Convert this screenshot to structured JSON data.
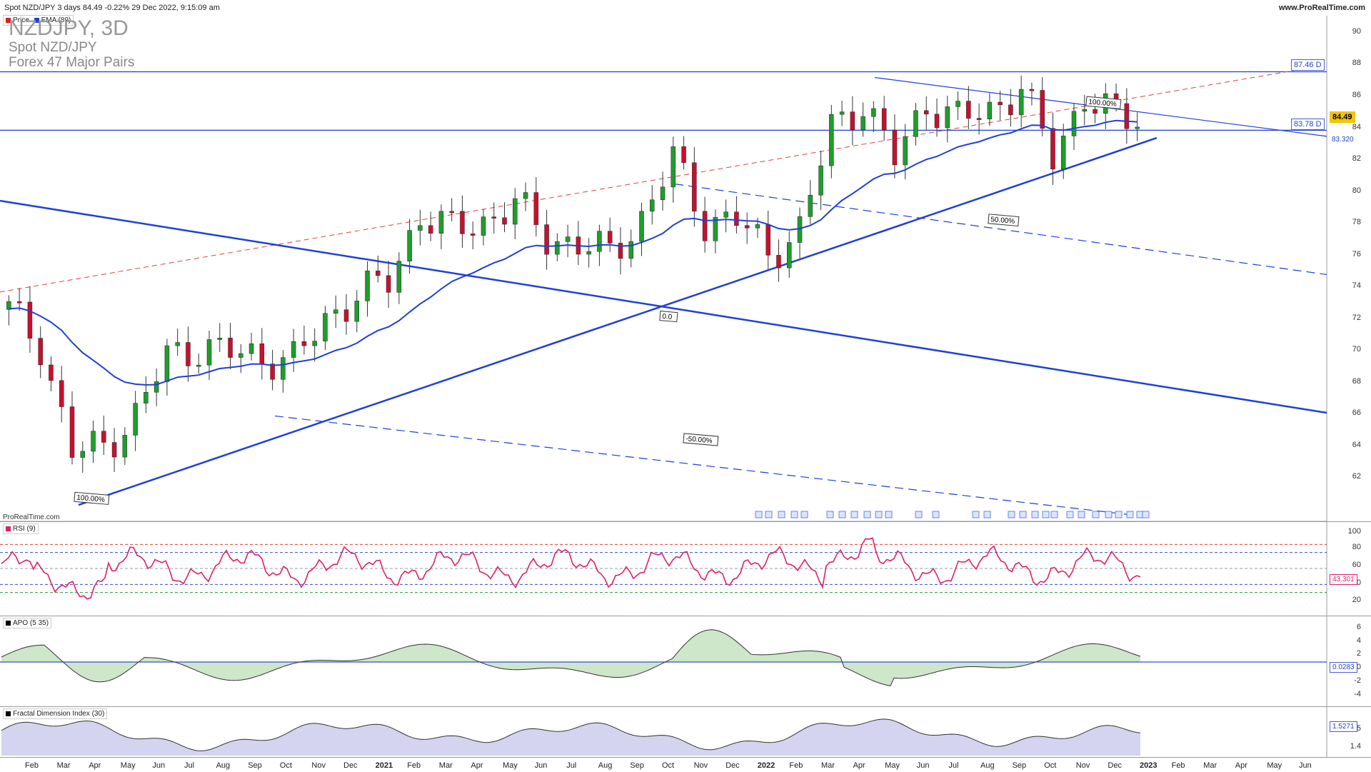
{
  "header": {
    "instrument_line": "Spot NZD/JPY 3 days 84.49 -0.22% 29 Dec 2022, 9:15:09 am",
    "site": "www.ProRealTime.com"
  },
  "legend_main": [
    {
      "label": "Price",
      "color": "#d62020"
    },
    {
      "label": "EMA (89)",
      "color": "#1f3fd8"
    }
  ],
  "titles": {
    "symbol": "NZDJPY, 3D",
    "name": "Spot NZD/JPY",
    "group": "Forex 47 Major Pairs"
  },
  "watermark": "ProRealTime.com",
  "price_axis": [
    "90",
    "88",
    "86",
    "84",
    "82",
    "80",
    "78",
    "76",
    "74",
    "72",
    "70",
    "68",
    "66",
    "64",
    "62"
  ],
  "price_tags": {
    "resistance": "87.46 D",
    "support": "83.78 D",
    "last": "84.49",
    "ema": "83.320"
  },
  "annotations": {
    "fib_100": "100.00%",
    "fib_50": "50.00%",
    "fib_0": "0.0",
    "fib_m50": "-50.00%",
    "fib_low": "100.00%"
  },
  "rsi": {
    "label": "RSI (9)",
    "axis": [
      "100",
      "80",
      "60",
      "40",
      "20"
    ],
    "value": "43.301",
    "color": "#e0206a"
  },
  "apo": {
    "label": "APO (5 35)",
    "axis": [
      "6",
      "4",
      "2",
      "0",
      "-2",
      "-4"
    ],
    "value": "0.0283"
  },
  "fdi": {
    "label": "Fractal Dimension Index (30)",
    "axis": [
      "1.5",
      "1.4"
    ],
    "value": "1.5271"
  },
  "x_axis": [
    {
      "label": "Feb",
      "year": false
    },
    {
      "label": "Mar",
      "year": false
    },
    {
      "label": "Apr",
      "year": false
    },
    {
      "label": "May",
      "year": false
    },
    {
      "label": "Jun",
      "year": false
    },
    {
      "label": "Jul",
      "year": false
    },
    {
      "label": "Aug",
      "year": false
    },
    {
      "label": "Sep",
      "year": false
    },
    {
      "label": "Oct",
      "year": false
    },
    {
      "label": "Nov",
      "year": false
    },
    {
      "label": "Dec",
      "year": false
    },
    {
      "label": "2021",
      "year": true
    },
    {
      "label": "Feb",
      "year": false
    },
    {
      "label": "Mar",
      "year": false
    },
    {
      "label": "Apr",
      "year": false
    },
    {
      "label": "May",
      "year": false
    },
    {
      "label": "Jun",
      "year": false
    },
    {
      "label": "Jul",
      "year": false
    },
    {
      "label": "Aug",
      "year": false
    },
    {
      "label": "Sep",
      "year": false
    },
    {
      "label": "Oct",
      "year": false
    },
    {
      "label": "Nov",
      "year": false
    },
    {
      "label": "Dec",
      "year": false
    },
    {
      "label": "2022",
      "year": true
    },
    {
      "label": "Feb",
      "year": false
    },
    {
      "label": "Mar",
      "year": false
    },
    {
      "label": "Apr",
      "year": false
    },
    {
      "label": "May",
      "year": false
    },
    {
      "label": "Jun",
      "year": false
    },
    {
      "label": "Jul",
      "year": false
    },
    {
      "label": "Aug",
      "year": false
    },
    {
      "label": "Sep",
      "year": false
    },
    {
      "label": "Oct",
      "year": false
    },
    {
      "label": "Nov",
      "year": false
    },
    {
      "label": "Dec",
      "year": false
    },
    {
      "label": "2023",
      "year": true
    },
    {
      "label": "Feb",
      "year": false
    },
    {
      "label": "Mar",
      "year": false
    },
    {
      "label": "Apr",
      "year": false
    },
    {
      "label": "May",
      "year": false
    },
    {
      "label": "Jun",
      "year": false
    }
  ],
  "colors": {
    "up": "#1e9e2a",
    "down": "#c8102e",
    "line": "#1f3fd8",
    "redline": "#e04040"
  },
  "chart_data": {
    "type": "line",
    "title": "NZDJPY, 3D",
    "ylim": [
      60,
      91
    ],
    "approx_close_by_month": [
      {
        "x": "2020-01",
        "y": 72.5
      },
      {
        "x": "2020-02",
        "y": 70.3
      },
      {
        "x": "2020-03",
        "y": 63.5
      },
      {
        "x": "2020-04",
        "y": 63.9
      },
      {
        "x": "2020-05",
        "y": 65.8
      },
      {
        "x": "2020-06",
        "y": 69.6
      },
      {
        "x": "2020-07",
        "y": 70.1
      },
      {
        "x": "2020-08",
        "y": 69.8
      },
      {
        "x": "2020-09",
        "y": 69.5
      },
      {
        "x": "2020-10",
        "y": 69.3
      },
      {
        "x": "2020-11",
        "y": 71.8
      },
      {
        "x": "2020-12",
        "y": 73.5
      },
      {
        "x": "2021-01",
        "y": 74.2
      },
      {
        "x": "2021-02",
        "y": 78.5
      },
      {
        "x": "2021-03",
        "y": 77.5
      },
      {
        "x": "2021-04",
        "y": 78.0
      },
      {
        "x": "2021-05",
        "y": 79.2
      },
      {
        "x": "2021-06",
        "y": 77.0
      },
      {
        "x": "2021-07",
        "y": 76.6
      },
      {
        "x": "2021-08",
        "y": 76.0
      },
      {
        "x": "2021-09",
        "y": 78.2
      },
      {
        "x": "2021-10",
        "y": 82.0
      },
      {
        "x": "2021-11",
        "y": 78.0
      },
      {
        "x": "2021-12",
        "y": 78.2
      },
      {
        "x": "2022-01",
        "y": 76.0
      },
      {
        "x": "2022-02",
        "y": 77.5
      },
      {
        "x": "2022-03",
        "y": 84.0
      },
      {
        "x": "2022-04",
        "y": 85.5
      },
      {
        "x": "2022-05",
        "y": 82.0
      },
      {
        "x": "2022-06",
        "y": 85.5
      },
      {
        "x": "2022-07",
        "y": 84.5
      },
      {
        "x": "2022-08",
        "y": 85.0
      },
      {
        "x": "2022-09",
        "y": 86.5
      },
      {
        "x": "2022-10",
        "y": 82.0
      },
      {
        "x": "2022-11",
        "y": 86.0
      },
      {
        "x": "2022-12",
        "y": 84.49
      }
    ]
  }
}
